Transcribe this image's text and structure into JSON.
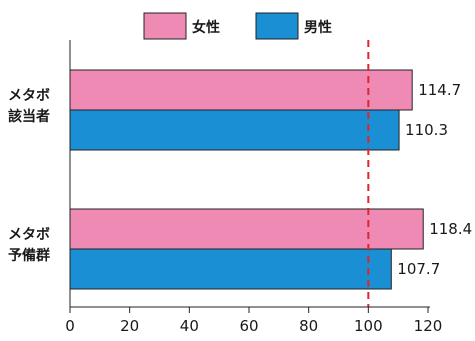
{
  "chart_data": {
    "type": "bar",
    "orientation": "horizontal",
    "categories": [
      [
        "メタボ",
        "該当者"
      ],
      [
        "メタボ",
        "予備群"
      ]
    ],
    "series": [
      {
        "name": "女性",
        "values": [
          114.7,
          118.4
        ],
        "color": "#ee8ab4"
      },
      {
        "name": "男性",
        "values": [
          110.3,
          107.7
        ],
        "color": "#1b8fd3"
      }
    ],
    "xlim": [
      0,
      120
    ],
    "xticks": [
      0,
      20,
      40,
      60,
      80,
      100,
      120
    ],
    "reference_line": {
      "value": 100,
      "color": "#e0242c",
      "style": "dashed"
    },
    "legend_position": "top",
    "grid": false
  }
}
